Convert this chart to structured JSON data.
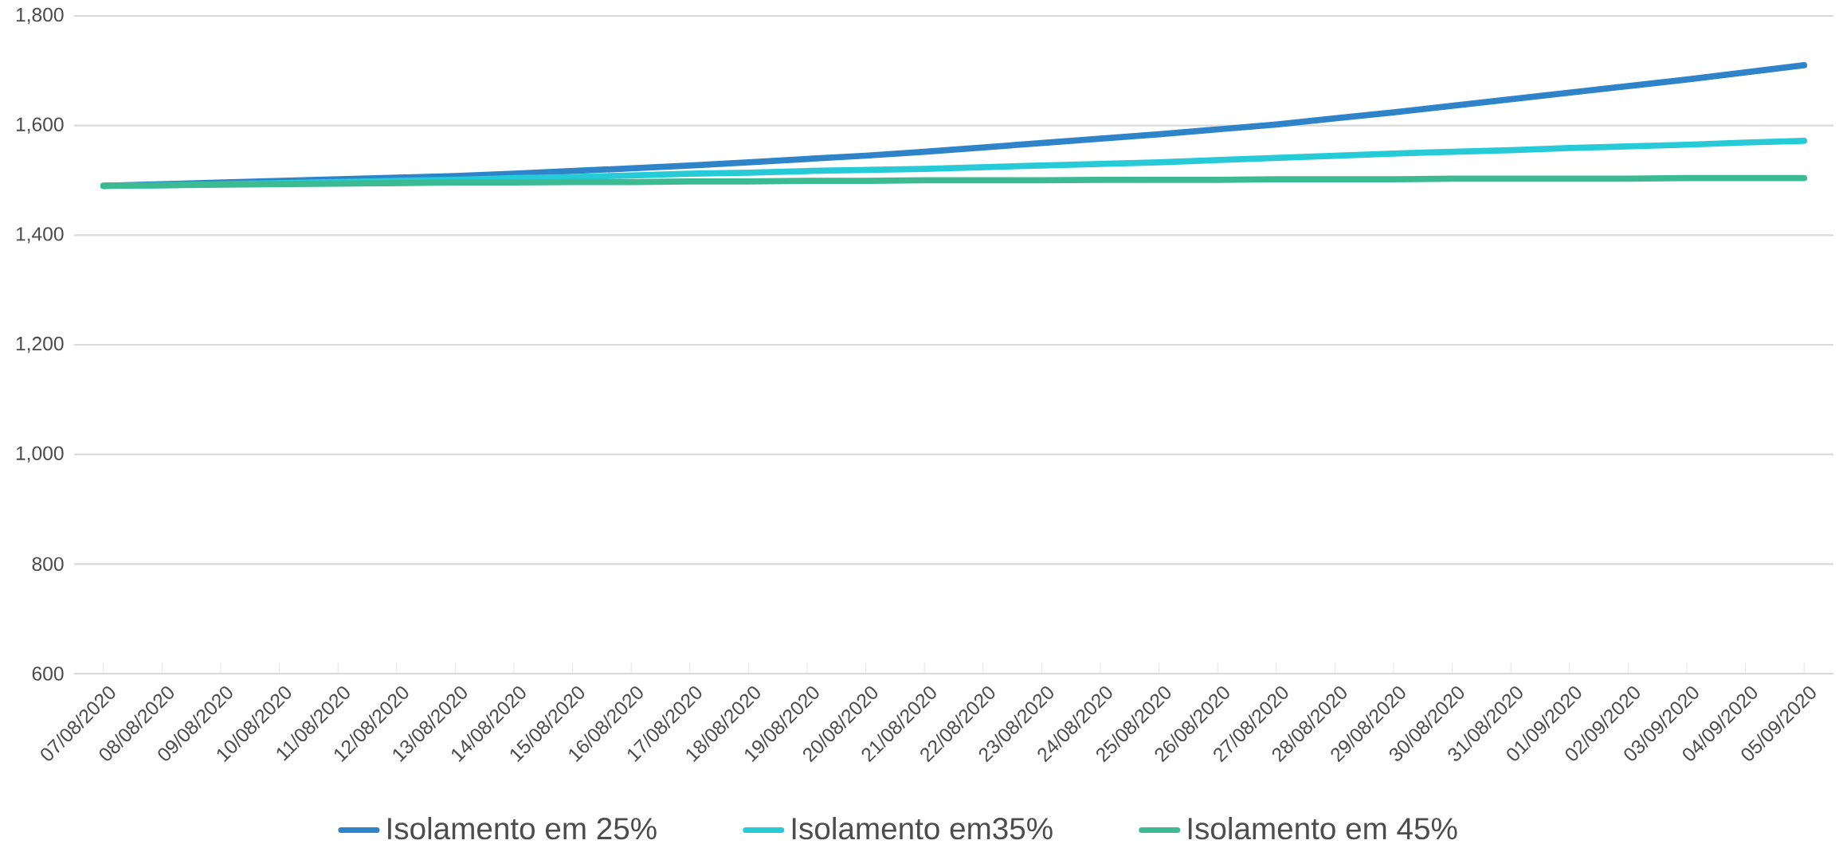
{
  "chart_data": {
    "type": "line",
    "categories": [
      "07/08/2020",
      "08/08/2020",
      "09/08/2020",
      "10/08/2020",
      "11/08/2020",
      "12/08/2020",
      "13/08/2020",
      "14/08/2020",
      "15/08/2020",
      "16/08/2020",
      "17/08/2020",
      "18/08/2020",
      "19/08/2020",
      "20/08/2020",
      "21/08/2020",
      "22/08/2020",
      "23/08/2020",
      "24/08/2020",
      "25/08/2020",
      "26/08/2020",
      "27/08/2020",
      "28/08/2020",
      "29/08/2020",
      "30/08/2020",
      "31/08/2020",
      "01/09/2020",
      "02/09/2020",
      "03/09/2020",
      "04/09/2020",
      "05/09/2020"
    ],
    "series": [
      {
        "name": "Isolamento em 25%",
        "color": "#2e83c9",
        "values": [
          1490,
          1493,
          1496,
          1499,
          1502,
          1505,
          1508,
          1512,
          1517,
          1522,
          1527,
          1533,
          1539,
          1545,
          1552,
          1560,
          1568,
          1576,
          1584,
          1593,
          1602,
          1613,
          1624,
          1636,
          1648,
          1660,
          1672,
          1684,
          1697,
          1710
        ]
      },
      {
        "name": "Isolamento em35%",
        "color": "#27cbd8",
        "values": [
          1490,
          1491,
          1493,
          1495,
          1497,
          1499,
          1501,
          1504,
          1506,
          1509,
          1512,
          1514,
          1517,
          1519,
          1521,
          1524,
          1527,
          1530,
          1533,
          1537,
          1541,
          1545,
          1549,
          1552,
          1555,
          1559,
          1562,
          1565,
          1569,
          1572
        ]
      },
      {
        "name": "Isolamento em 45%",
        "color": "#3cbb93",
        "values": [
          1490,
          1491,
          1492,
          1493,
          1494,
          1495,
          1496,
          1496,
          1497,
          1497,
          1498,
          1498,
          1499,
          1499,
          1500,
          1500,
          1500,
          1501,
          1501,
          1501,
          1502,
          1502,
          1502,
          1503,
          1503,
          1503,
          1503,
          1504,
          1504,
          1504
        ]
      }
    ],
    "ylim": [
      600,
      1800
    ],
    "yticks": [
      600,
      800,
      {
        "value": 1000,
        "label": "1,000"
      },
      {
        "value": 1200,
        "label": "1,200"
      },
      {
        "value": 1400,
        "label": "1,400"
      },
      {
        "value": 1600,
        "label": "1,600"
      },
      {
        "value": 1800,
        "label": "1,800"
      }
    ],
    "grid": "y",
    "legend": "bottom",
    "marker": "none",
    "line_style": "solid"
  }
}
